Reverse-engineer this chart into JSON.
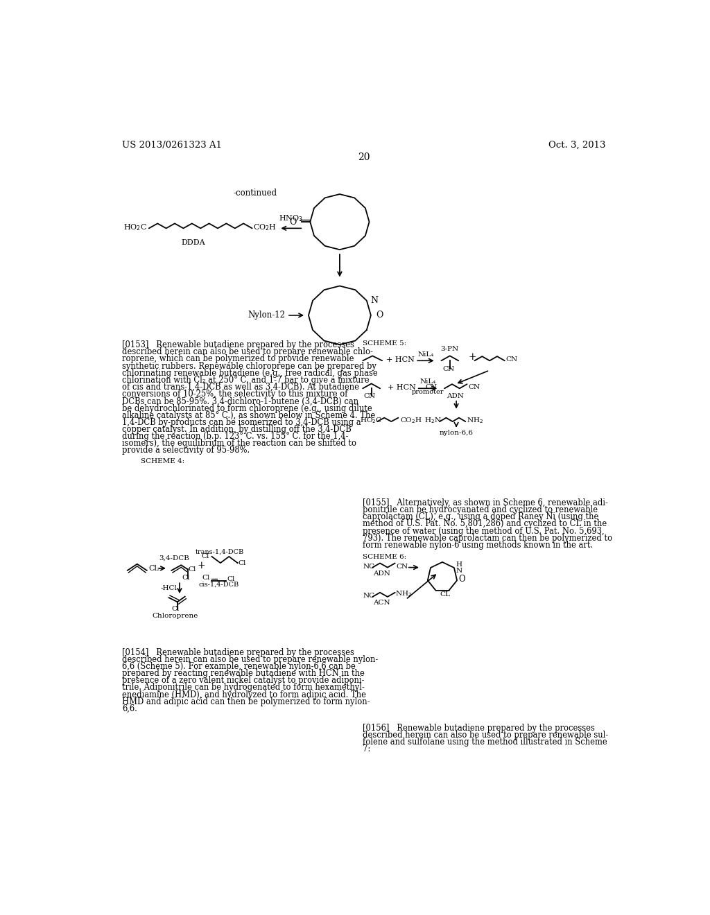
{
  "bg_color": "#ffffff",
  "header_left": "US 2013/0261323 A1",
  "header_right": "Oct. 3, 2013",
  "page_number": "20",
  "continued_label": "-continued",
  "scheme4_label": "SCHEME 4:",
  "scheme5_label": "SCHEME 5:",
  "scheme6_label": "SCHEME 6:",
  "para153_lines": [
    "[0153]   Renewable butadiene prepared by the processes",
    "described herein can also be used to prepare renewable chlo-",
    "roprene, which can be polymerized to provide renewable",
    "synthetic rubbers. Renewable chloroprene can be prepared by",
    "chlorinating renewable butadiene (e.g., free radical, gas phase",
    "chlorination with Cl₂ at 250° C. and 1-7 bar to give a mixture",
    "of cis and trans-1,4-DCB as well as 3,4-DCB). At butadiene",
    "conversions of 10-25%, the selectivity to this mixture of",
    "DCBs can be 85-95%. 3,4-dichloro-1-butene (3,4-DCB) can",
    "be dehydrochlorinated to form chloroprene (e.g., using dilute",
    "alkaline catalysts at 85° C.), as shown below in Scheme 4. The",
    "1,4-DCB by-products can be isomerized to 3,4-DCB using a",
    "copper catalyst. In addition, by distilling off the 3,4-DCB",
    "during the reaction (b.p. 123° C. vs. 155° C. for the 1,4-",
    "isomers), the equilibrium of the reaction can be shifted to",
    "provide a selectivity of 95-98%."
  ],
  "para154_lines": [
    "[0154]   Renewable butadiene prepared by the processes",
    "described herein can also be used to prepare renewable nylon-",
    "6,6 (Scheme 5). For example, renewable nylon-6,6 can be",
    "prepared by reacting renewable butadiene with HCN in the",
    "presence of a zero valent nickel catalyst to provide adiponi-",
    "trile. Adiponitrile can be hydrogenated to form hexamethyl-",
    "enediamine (HMD), and hydrolyzed to form adipic acid. The",
    "HMD and adipic acid can then be polymerized to form nylon-",
    "6,6."
  ],
  "para155_lines": [
    "[0155]   Alternatively, as shown in Scheme 6, renewable adi-",
    "ponitrile can be hydrocyanated and cyclized to renewable",
    "caprolactam (CL), e.g., using a doped Raney Ni (using the",
    "method of U.S. Pat. No. 5,801,286) and cyclized to CL in the",
    "presence of water (using the method of U.S. Pat. No. 5,693,",
    "793). The renewable caprolactam can then be polymerized to",
    "form renewable nylon-6 using methods known in the art."
  ],
  "para156_lines": [
    "[0156]   Renewable butadiene prepared by the processes",
    "described herein can also be used to prepare renewable sul-",
    "folene and sulfolane using the method illustrated in Scheme",
    "7:"
  ]
}
